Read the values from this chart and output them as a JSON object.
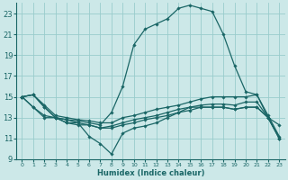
{
  "xlabel": "Humidex (Indice chaleur)",
  "xlim": [
    -0.5,
    23.5
  ],
  "ylim": [
    9,
    24
  ],
  "yticks": [
    9,
    11,
    13,
    15,
    17,
    19,
    21,
    23
  ],
  "xticks": [
    0,
    1,
    2,
    3,
    4,
    5,
    6,
    7,
    8,
    9,
    10,
    11,
    12,
    13,
    14,
    15,
    16,
    17,
    18,
    19,
    20,
    21,
    22,
    23
  ],
  "bg_color": "#cce8e8",
  "grid_color": "#99cccc",
  "line_color": "#1a6666",
  "lines": [
    {
      "x": [
        0,
        1,
        2,
        3,
        4,
        5,
        6,
        7,
        8,
        9,
        10,
        11,
        12,
        13,
        14,
        15,
        16,
        17,
        18,
        19,
        20,
        21,
        22,
        23
      ],
      "y": [
        15.0,
        15.2,
        14.0,
        13.0,
        12.8,
        12.7,
        12.5,
        12.3,
        13.5,
        16.0,
        20.0,
        21.5,
        22.0,
        22.5,
        23.5,
        23.8,
        23.5,
        23.2,
        21.0,
        18.0,
        15.5,
        15.2,
        13.0,
        12.3
      ]
    },
    {
      "x": [
        0,
        1,
        2,
        3,
        4,
        5,
        6,
        7,
        8,
        9,
        10,
        11,
        12,
        13,
        14,
        15,
        16,
        17,
        18,
        19,
        20,
        21,
        22,
        23
      ],
      "y": [
        15.0,
        15.2,
        14.2,
        13.2,
        13.0,
        12.8,
        12.7,
        12.5,
        12.5,
        13.0,
        13.2,
        13.5,
        13.8,
        14.0,
        14.2,
        14.5,
        14.8,
        15.0,
        15.0,
        15.0,
        15.0,
        15.2,
        13.2,
        11.2
      ]
    },
    {
      "x": [
        0,
        1,
        2,
        3,
        4,
        5,
        6,
        7,
        8,
        9,
        10,
        11,
        12,
        13,
        14,
        15,
        16,
        17,
        18,
        19,
        20,
        21,
        22,
        23
      ],
      "y": [
        15.0,
        14.0,
        13.2,
        13.0,
        12.5,
        12.5,
        12.3,
        12.0,
        12.2,
        12.5,
        12.8,
        13.0,
        13.2,
        13.5,
        13.8,
        14.0,
        14.2,
        14.3,
        14.3,
        14.2,
        14.5,
        14.5,
        13.0,
        11.0
      ]
    },
    {
      "x": [
        0,
        1,
        2,
        3,
        4,
        5,
        6,
        7,
        8,
        9,
        10,
        11,
        12,
        13,
        14,
        15,
        16,
        17,
        18,
        19,
        20,
        21,
        22,
        23
      ],
      "y": [
        15.0,
        14.0,
        13.0,
        13.0,
        12.5,
        12.3,
        12.3,
        12.0,
        12.0,
        12.3,
        12.5,
        12.8,
        13.0,
        13.2,
        13.5,
        13.7,
        14.0,
        14.0,
        14.0,
        13.8,
        14.0,
        14.0,
        13.0,
        11.0
      ]
    },
    {
      "x": [
        0,
        1,
        2,
        3,
        4,
        5,
        6,
        7,
        8,
        9,
        10,
        11,
        12,
        13,
        14,
        15,
        16,
        17,
        18,
        19,
        20,
        21,
        22,
        23
      ],
      "y": [
        15.0,
        15.2,
        14.0,
        13.0,
        12.8,
        12.5,
        11.2,
        10.5,
        9.5,
        11.5,
        12.0,
        12.2,
        12.5,
        13.0,
        13.5,
        14.0,
        14.0,
        14.0,
        14.0,
        13.8,
        14.0,
        14.0,
        13.0,
        11.0
      ]
    }
  ]
}
